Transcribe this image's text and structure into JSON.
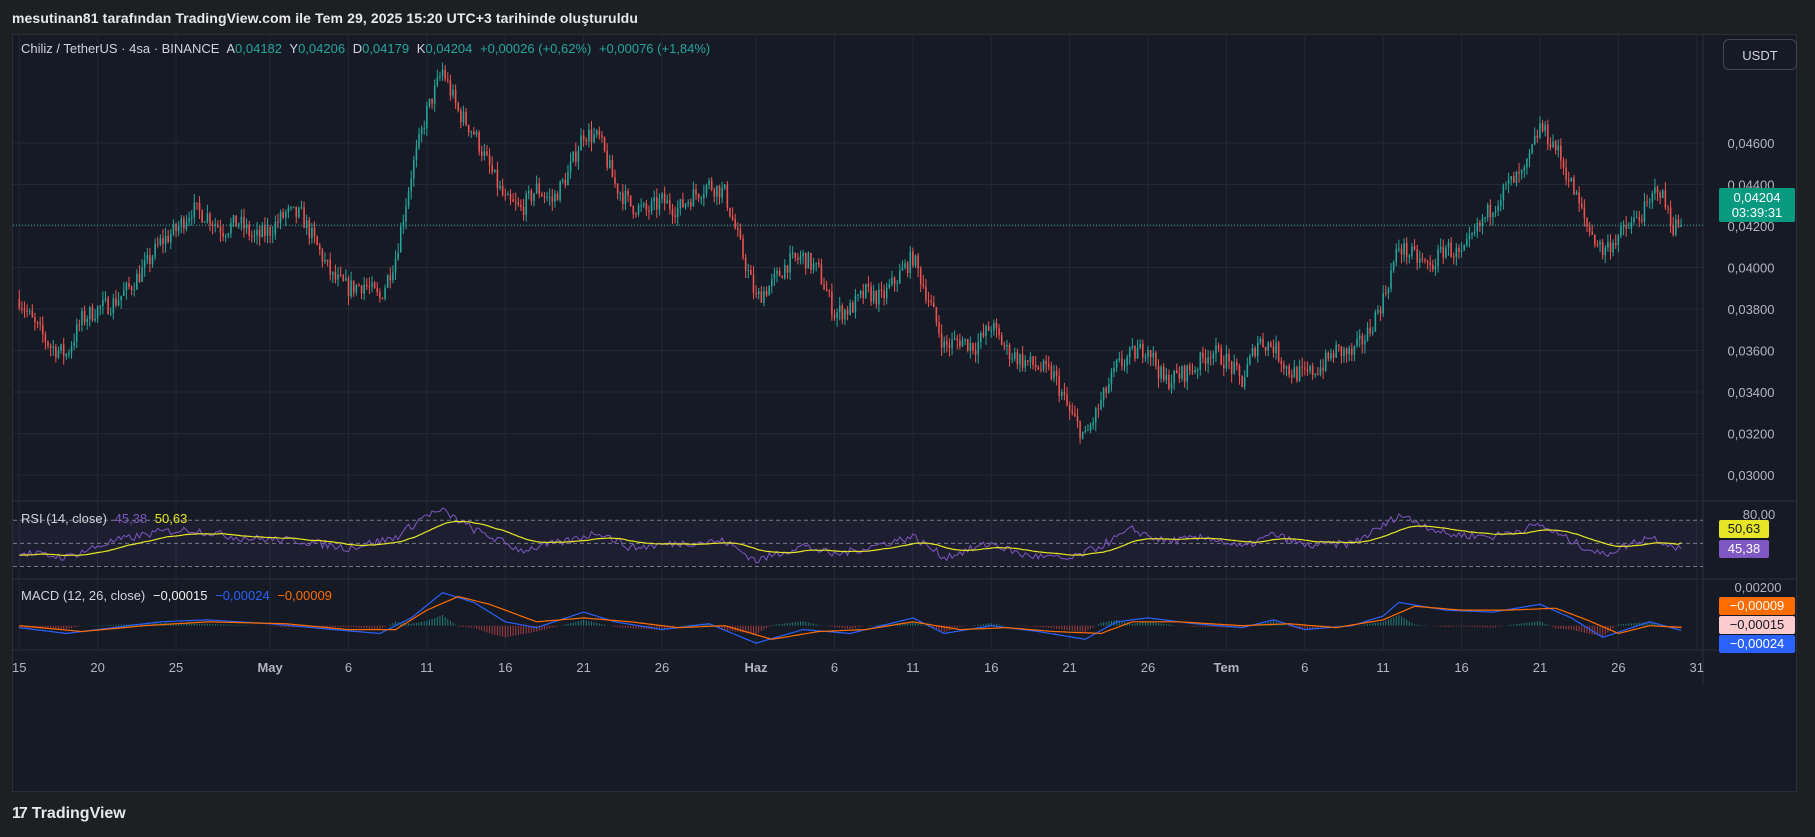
{
  "caption": "mesutinan81 tarafından TradingView.com ile Tem 29, 2025 15:20 UTC+3 tarihinde oluşturuldu",
  "footer_brand": "TradingView",
  "currency_button": "USDT",
  "legend": {
    "symbol": "Chiliz / TetherUS · 4sa · BINANCE",
    "open_label": "A",
    "open": "0,04182",
    "high_label": "Y",
    "high": "0,04206",
    "low_label": "D",
    "low": "0,04179",
    "close_label": "K",
    "close": "0,04204",
    "change": "+0,00026 (+0,62%)",
    "change2": "+0,00076 (+1,84%)"
  },
  "price_tag": {
    "value": "0,04204",
    "countdown": "03:39:31"
  },
  "rsi_legend": {
    "name": "RSI (14, close)",
    "rsi": "45,38",
    "ma": "50,63"
  },
  "rsi_tags": {
    "top": "80,00",
    "ma": "50,63",
    "rsi": "45,38"
  },
  "macd_legend": {
    "name": "MACD (12, 26, close)",
    "hist": "−0,00015",
    "macd": "−0,00024",
    "signal": "−0,00009"
  },
  "macd_tags": {
    "top": "0,00200",
    "signal": "−0,00009",
    "hist": "−0,00015",
    "macd": "−0,00024"
  },
  "colors": {
    "up": "#26a69a",
    "down": "#ef5350",
    "rsi": "#7e57c2",
    "rsi_ma": "#e6e626",
    "macd": "#2962ff",
    "signal": "#ff6d00",
    "background": "#161a25",
    "grid": "#242833",
    "text": "#d1d4dc"
  },
  "chart_data": {
    "type": "candlestick",
    "title": "Chiliz / TetherUS · 4sa · BINANCE",
    "y_axis_ticks": [
      "0,04600",
      "0,04400",
      "0,04200",
      "0,04000",
      "0,03800",
      "0,03600",
      "0,03400",
      "0,03200",
      "0,03000"
    ],
    "y_axis_tick_values": [
      0.046,
      0.044,
      0.042,
      0.04,
      0.038,
      0.036,
      0.034,
      0.032,
      0.03
    ],
    "ylim": [
      0.0288,
      0.0512
    ],
    "x_axis_ticks": [
      "15",
      "20",
      "25",
      "May",
      "6",
      "11",
      "16",
      "21",
      "26",
      "Haz",
      "6",
      "11",
      "16",
      "21",
      "26",
      "Tem",
      "6",
      "11",
      "16",
      "21",
      "26",
      "31"
    ],
    "x_axis_tick_days": [
      0,
      5,
      10,
      16,
      21,
      26,
      31,
      36,
      41,
      47,
      52,
      57,
      62,
      67,
      72,
      77,
      82,
      87,
      92,
      97,
      102,
      107
    ],
    "x_range_days": [
      -0.4,
      107.4
    ],
    "last_price": 0.04204,
    "price_path": [
      {
        "d": 0,
        "p": 0.0385
      },
      {
        "d": 1,
        "p": 0.0372
      },
      {
        "d": 2,
        "p": 0.0362
      },
      {
        "d": 3,
        "p": 0.0358
      },
      {
        "d": 4,
        "p": 0.0375
      },
      {
        "d": 5,
        "p": 0.038
      },
      {
        "d": 6,
        "p": 0.0383
      },
      {
        "d": 7,
        "p": 0.039
      },
      {
        "d": 8,
        "p": 0.04
      },
      {
        "d": 9,
        "p": 0.0412
      },
      {
        "d": 10,
        "p": 0.0418
      },
      {
        "d": 11,
        "p": 0.0428
      },
      {
        "d": 12,
        "p": 0.0425
      },
      {
        "d": 13,
        "p": 0.0418
      },
      {
        "d": 14,
        "p": 0.0422
      },
      {
        "d": 15,
        "p": 0.0414
      },
      {
        "d": 16,
        "p": 0.0418
      },
      {
        "d": 17,
        "p": 0.0426
      },
      {
        "d": 18,
        "p": 0.0425
      },
      {
        "d": 19,
        "p": 0.041
      },
      {
        "d": 20,
        "p": 0.0395
      },
      {
        "d": 21,
        "p": 0.039
      },
      {
        "d": 22,
        "p": 0.0392
      },
      {
        "d": 23,
        "p": 0.0385
      },
      {
        "d": 24,
        "p": 0.0405
      },
      {
        "d": 25,
        "p": 0.0445
      },
      {
        "d": 26,
        "p": 0.0475
      },
      {
        "d": 27,
        "p": 0.0495
      },
      {
        "d": 28,
        "p": 0.0475
      },
      {
        "d": 29,
        "p": 0.0465
      },
      {
        "d": 30,
        "p": 0.0448
      },
      {
        "d": 31,
        "p": 0.0432
      },
      {
        "d": 32,
        "p": 0.0428
      },
      {
        "d": 33,
        "p": 0.0438
      },
      {
        "d": 34,
        "p": 0.0432
      },
      {
        "d": 35,
        "p": 0.0445
      },
      {
        "d": 36,
        "p": 0.0465
      },
      {
        "d": 37,
        "p": 0.0462
      },
      {
        "d": 38,
        "p": 0.044
      },
      {
        "d": 39,
        "p": 0.043
      },
      {
        "d": 40,
        "p": 0.0427
      },
      {
        "d": 41,
        "p": 0.0432
      },
      {
        "d": 42,
        "p": 0.0428
      },
      {
        "d": 43,
        "p": 0.0435
      },
      {
        "d": 44,
        "p": 0.044
      },
      {
        "d": 45,
        "p": 0.0436
      },
      {
        "d": 46,
        "p": 0.041
      },
      {
        "d": 47,
        "p": 0.0385
      },
      {
        "d": 48,
        "p": 0.0392
      },
      {
        "d": 49,
        "p": 0.0402
      },
      {
        "d": 50,
        "p": 0.0405
      },
      {
        "d": 51,
        "p": 0.0398
      },
      {
        "d": 52,
        "p": 0.0378
      },
      {
        "d": 53,
        "p": 0.038
      },
      {
        "d": 54,
        "p": 0.0388
      },
      {
        "d": 55,
        "p": 0.0385
      },
      {
        "d": 56,
        "p": 0.0395
      },
      {
        "d": 57,
        "p": 0.0405
      },
      {
        "d": 58,
        "p": 0.0385
      },
      {
        "d": 59,
        "p": 0.0362
      },
      {
        "d": 60,
        "p": 0.0365
      },
      {
        "d": 61,
        "p": 0.0362
      },
      {
        "d": 62,
        "p": 0.0372
      },
      {
        "d": 63,
        "p": 0.036
      },
      {
        "d": 64,
        "p": 0.0355
      },
      {
        "d": 65,
        "p": 0.0352
      },
      {
        "d": 66,
        "p": 0.0348
      },
      {
        "d": 67,
        "p": 0.033
      },
      {
        "d": 68,
        "p": 0.0318
      },
      {
        "d": 69,
        "p": 0.0335
      },
      {
        "d": 70,
        "p": 0.0352
      },
      {
        "d": 71,
        "p": 0.0358
      },
      {
        "d": 72,
        "p": 0.0362
      },
      {
        "d": 73,
        "p": 0.0345
      },
      {
        "d": 74,
        "p": 0.0348
      },
      {
        "d": 75,
        "p": 0.0352
      },
      {
        "d": 76,
        "p": 0.036
      },
      {
        "d": 77,
        "p": 0.0355
      },
      {
        "d": 78,
        "p": 0.0345
      },
      {
        "d": 79,
        "p": 0.0365
      },
      {
        "d": 80,
        "p": 0.0362
      },
      {
        "d": 81,
        "p": 0.035
      },
      {
        "d": 82,
        "p": 0.0348
      },
      {
        "d": 83,
        "p": 0.0352
      },
      {
        "d": 84,
        "p": 0.036
      },
      {
        "d": 85,
        "p": 0.0358
      },
      {
        "d": 86,
        "p": 0.0368
      },
      {
        "d": 87,
        "p": 0.0385
      },
      {
        "d": 88,
        "p": 0.041
      },
      {
        "d": 89,
        "p": 0.0405
      },
      {
        "d": 90,
        "p": 0.04
      },
      {
        "d": 91,
        "p": 0.041
      },
      {
        "d": 92,
        "p": 0.0405
      },
      {
        "d": 93,
        "p": 0.0418
      },
      {
        "d": 94,
        "p": 0.043
      },
      {
        "d": 95,
        "p": 0.044
      },
      {
        "d": 96,
        "p": 0.0445
      },
      {
        "d": 97,
        "p": 0.0468
      },
      {
        "d": 98,
        "p": 0.0458
      },
      {
        "d": 99,
        "p": 0.044
      },
      {
        "d": 100,
        "p": 0.042
      },
      {
        "d": 101,
        "p": 0.0408
      },
      {
        "d": 102,
        "p": 0.0415
      },
      {
        "d": 103,
        "p": 0.0422
      },
      {
        "d": 104,
        "p": 0.043
      },
      {
        "d": 104.5,
        "p": 0.044
      },
      {
        "d": 105.5,
        "p": 0.042
      },
      {
        "d": 106,
        "p": 0.04204
      }
    ],
    "rsi": {
      "label": "RSI (14, close)",
      "last": 45.38,
      "ma_last": 50.63,
      "bands": [
        70,
        50,
        30
      ],
      "axis_tick": "80,00",
      "range": [
        20,
        85
      ],
      "path": [
        {
          "d": 0,
          "v": 42
        },
        {
          "d": 3,
          "v": 38
        },
        {
          "d": 6,
          "v": 52
        },
        {
          "d": 9,
          "v": 60
        },
        {
          "d": 11,
          "v": 62
        },
        {
          "d": 14,
          "v": 55
        },
        {
          "d": 18,
          "v": 52
        },
        {
          "d": 21,
          "v": 46
        },
        {
          "d": 24,
          "v": 55
        },
        {
          "d": 26,
          "v": 75
        },
        {
          "d": 27,
          "v": 78
        },
        {
          "d": 29,
          "v": 62
        },
        {
          "d": 32,
          "v": 44
        },
        {
          "d": 35,
          "v": 52
        },
        {
          "d": 37,
          "v": 60
        },
        {
          "d": 39,
          "v": 46
        },
        {
          "d": 42,
          "v": 50
        },
        {
          "d": 45,
          "v": 52
        },
        {
          "d": 47,
          "v": 35
        },
        {
          "d": 50,
          "v": 48
        },
        {
          "d": 52,
          "v": 40
        },
        {
          "d": 54,
          "v": 46
        },
        {
          "d": 57,
          "v": 56
        },
        {
          "d": 59,
          "v": 38
        },
        {
          "d": 62,
          "v": 50
        },
        {
          "d": 64,
          "v": 40
        },
        {
          "d": 67,
          "v": 36
        },
        {
          "d": 69,
          "v": 48
        },
        {
          "d": 71,
          "v": 62
        },
        {
          "d": 73,
          "v": 52
        },
        {
          "d": 76,
          "v": 55
        },
        {
          "d": 78,
          "v": 46
        },
        {
          "d": 80,
          "v": 58
        },
        {
          "d": 82,
          "v": 48
        },
        {
          "d": 85,
          "v": 50
        },
        {
          "d": 87,
          "v": 65
        },
        {
          "d": 88,
          "v": 75
        },
        {
          "d": 91,
          "v": 58
        },
        {
          "d": 94,
          "v": 56
        },
        {
          "d": 97,
          "v": 66
        },
        {
          "d": 99,
          "v": 52
        },
        {
          "d": 101,
          "v": 40
        },
        {
          "d": 104,
          "v": 56
        },
        {
          "d": 106,
          "v": 45.38
        }
      ]
    },
    "macd": {
      "label": "MACD (12, 26, close)",
      "macd_last": -0.00024,
      "signal_last": -9e-05,
      "hist_last": -0.00015,
      "axis_tick": "0,00200",
      "range": [
        -0.0012,
        0.0023
      ],
      "macd_path": [
        {
          "d": 0,
          "v": -0.0001
        },
        {
          "d": 3,
          "v": -0.0004
        },
        {
          "d": 6,
          "v": -0.0001
        },
        {
          "d": 9,
          "v": 0.0002
        },
        {
          "d": 12,
          "v": 0.0003
        },
        {
          "d": 16,
          "v": 0.0001
        },
        {
          "d": 20,
          "v": -0.0002
        },
        {
          "d": 23,
          "v": -0.0004
        },
        {
          "d": 25,
          "v": 0.0004
        },
        {
          "d": 27,
          "v": 0.0017
        },
        {
          "d": 29,
          "v": 0.0012
        },
        {
          "d": 31,
          "v": 0.0002
        },
        {
          "d": 33,
          "v": -0.0001
        },
        {
          "d": 36,
          "v": 0.0007
        },
        {
          "d": 38,
          "v": 0.0002
        },
        {
          "d": 41,
          "v": -0.0002
        },
        {
          "d": 44,
          "v": 0.0001
        },
        {
          "d": 47,
          "v": -0.0009
        },
        {
          "d": 50,
          "v": -0.0002
        },
        {
          "d": 53,
          "v": -0.0004
        },
        {
          "d": 57,
          "v": 0.0004
        },
        {
          "d": 59,
          "v": -0.0004
        },
        {
          "d": 62,
          "v": 0.0
        },
        {
          "d": 65,
          "v": -0.0003
        },
        {
          "d": 68,
          "v": -0.0007
        },
        {
          "d": 70,
          "v": 0.0002
        },
        {
          "d": 72,
          "v": 0.0004
        },
        {
          "d": 75,
          "v": 0.0001
        },
        {
          "d": 78,
          "v": -0.0001
        },
        {
          "d": 80,
          "v": 0.0003
        },
        {
          "d": 82,
          "v": -0.0002
        },
        {
          "d": 85,
          "v": 0.0
        },
        {
          "d": 87,
          "v": 0.0005
        },
        {
          "d": 88,
          "v": 0.0012
        },
        {
          "d": 91,
          "v": 0.0008
        },
        {
          "d": 94,
          "v": 0.0007
        },
        {
          "d": 97,
          "v": 0.0011
        },
        {
          "d": 99,
          "v": 0.0004
        },
        {
          "d": 101,
          "v": -0.0006
        },
        {
          "d": 104,
          "v": 0.0002
        },
        {
          "d": 106,
          "v": -0.00024
        }
      ],
      "signal_path": [
        {
          "d": 0,
          "v": 0.0
        },
        {
          "d": 4,
          "v": -0.0003
        },
        {
          "d": 8,
          "v": 0.0
        },
        {
          "d": 12,
          "v": 0.0002
        },
        {
          "d": 17,
          "v": 0.0001
        },
        {
          "d": 21,
          "v": -0.0002
        },
        {
          "d": 24,
          "v": -0.0002
        },
        {
          "d": 26,
          "v": 0.0008
        },
        {
          "d": 28,
          "v": 0.0015
        },
        {
          "d": 30,
          "v": 0.0011
        },
        {
          "d": 33,
          "v": 0.0002
        },
        {
          "d": 36,
          "v": 0.0004
        },
        {
          "d": 39,
          "v": 0.0002
        },
        {
          "d": 42,
          "v": -0.0001
        },
        {
          "d": 45,
          "v": 0.0
        },
        {
          "d": 48,
          "v": -0.0007
        },
        {
          "d": 51,
          "v": -0.0003
        },
        {
          "d": 54,
          "v": -0.0002
        },
        {
          "d": 57,
          "v": 0.0002
        },
        {
          "d": 60,
          "v": -0.0002
        },
        {
          "d": 63,
          "v": -0.0001
        },
        {
          "d": 66,
          "v": -0.0003
        },
        {
          "d": 69,
          "v": -0.0004
        },
        {
          "d": 71,
          "v": 0.0002
        },
        {
          "d": 74,
          "v": 0.0002
        },
        {
          "d": 78,
          "v": 0.0
        },
        {
          "d": 81,
          "v": 0.0001
        },
        {
          "d": 84,
          "v": -0.0001
        },
        {
          "d": 87,
          "v": 0.0003
        },
        {
          "d": 89,
          "v": 0.001
        },
        {
          "d": 92,
          "v": 0.0008
        },
        {
          "d": 95,
          "v": 0.0008
        },
        {
          "d": 98,
          "v": 0.0009
        },
        {
          "d": 100,
          "v": 0.0003
        },
        {
          "d": 102,
          "v": -0.0004
        },
        {
          "d": 104,
          "v": 0.0
        },
        {
          "d": 106,
          "v": -9e-05
        }
      ]
    }
  }
}
